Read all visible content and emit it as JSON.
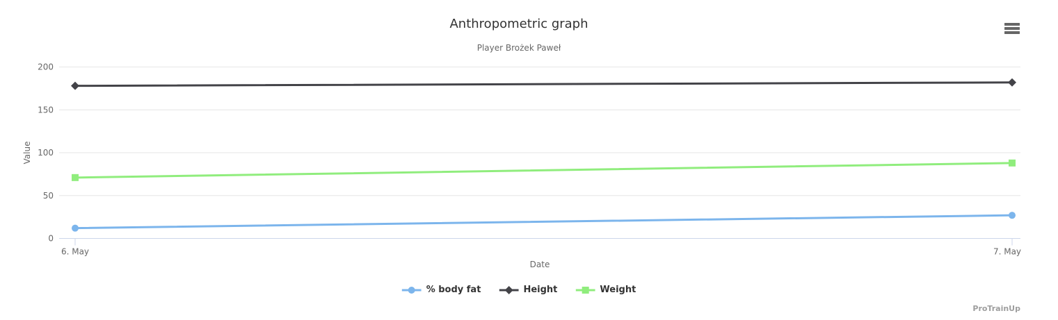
{
  "chart": {
    "title": "Anthropometric graph",
    "subtitle": "Player Brożek Paweł",
    "watermark": "ProTrainUp",
    "menu_icon": "hamburger-icon"
  },
  "chart_data": {
    "type": "line",
    "x": [
      "6. May",
      "7. May"
    ],
    "xlabel": "Date",
    "ylabel": "Value",
    "ylim": [
      0,
      200
    ],
    "yticks": [
      0,
      50,
      100,
      150,
      200
    ],
    "grid": true,
    "legend_position": "bottom-center",
    "series": [
      {
        "name": "% body fat",
        "color": "#7cb5ec",
        "marker": "circle",
        "values": [
          12,
          27
        ]
      },
      {
        "name": "Height",
        "color": "#434348",
        "marker": "diamond",
        "values": [
          178,
          182
        ]
      },
      {
        "name": "Weight",
        "color": "#90ed7d",
        "marker": "square",
        "values": [
          71,
          88
        ]
      }
    ]
  },
  "colors": {
    "grid": "#e6e6e6",
    "axis_line": "#ccd6eb",
    "title": "#333333",
    "subtitle": "#666666",
    "tick_label": "#666666",
    "legend_text": "#333333",
    "menu_icon": "#666666",
    "watermark": "#9e9e9e"
  }
}
